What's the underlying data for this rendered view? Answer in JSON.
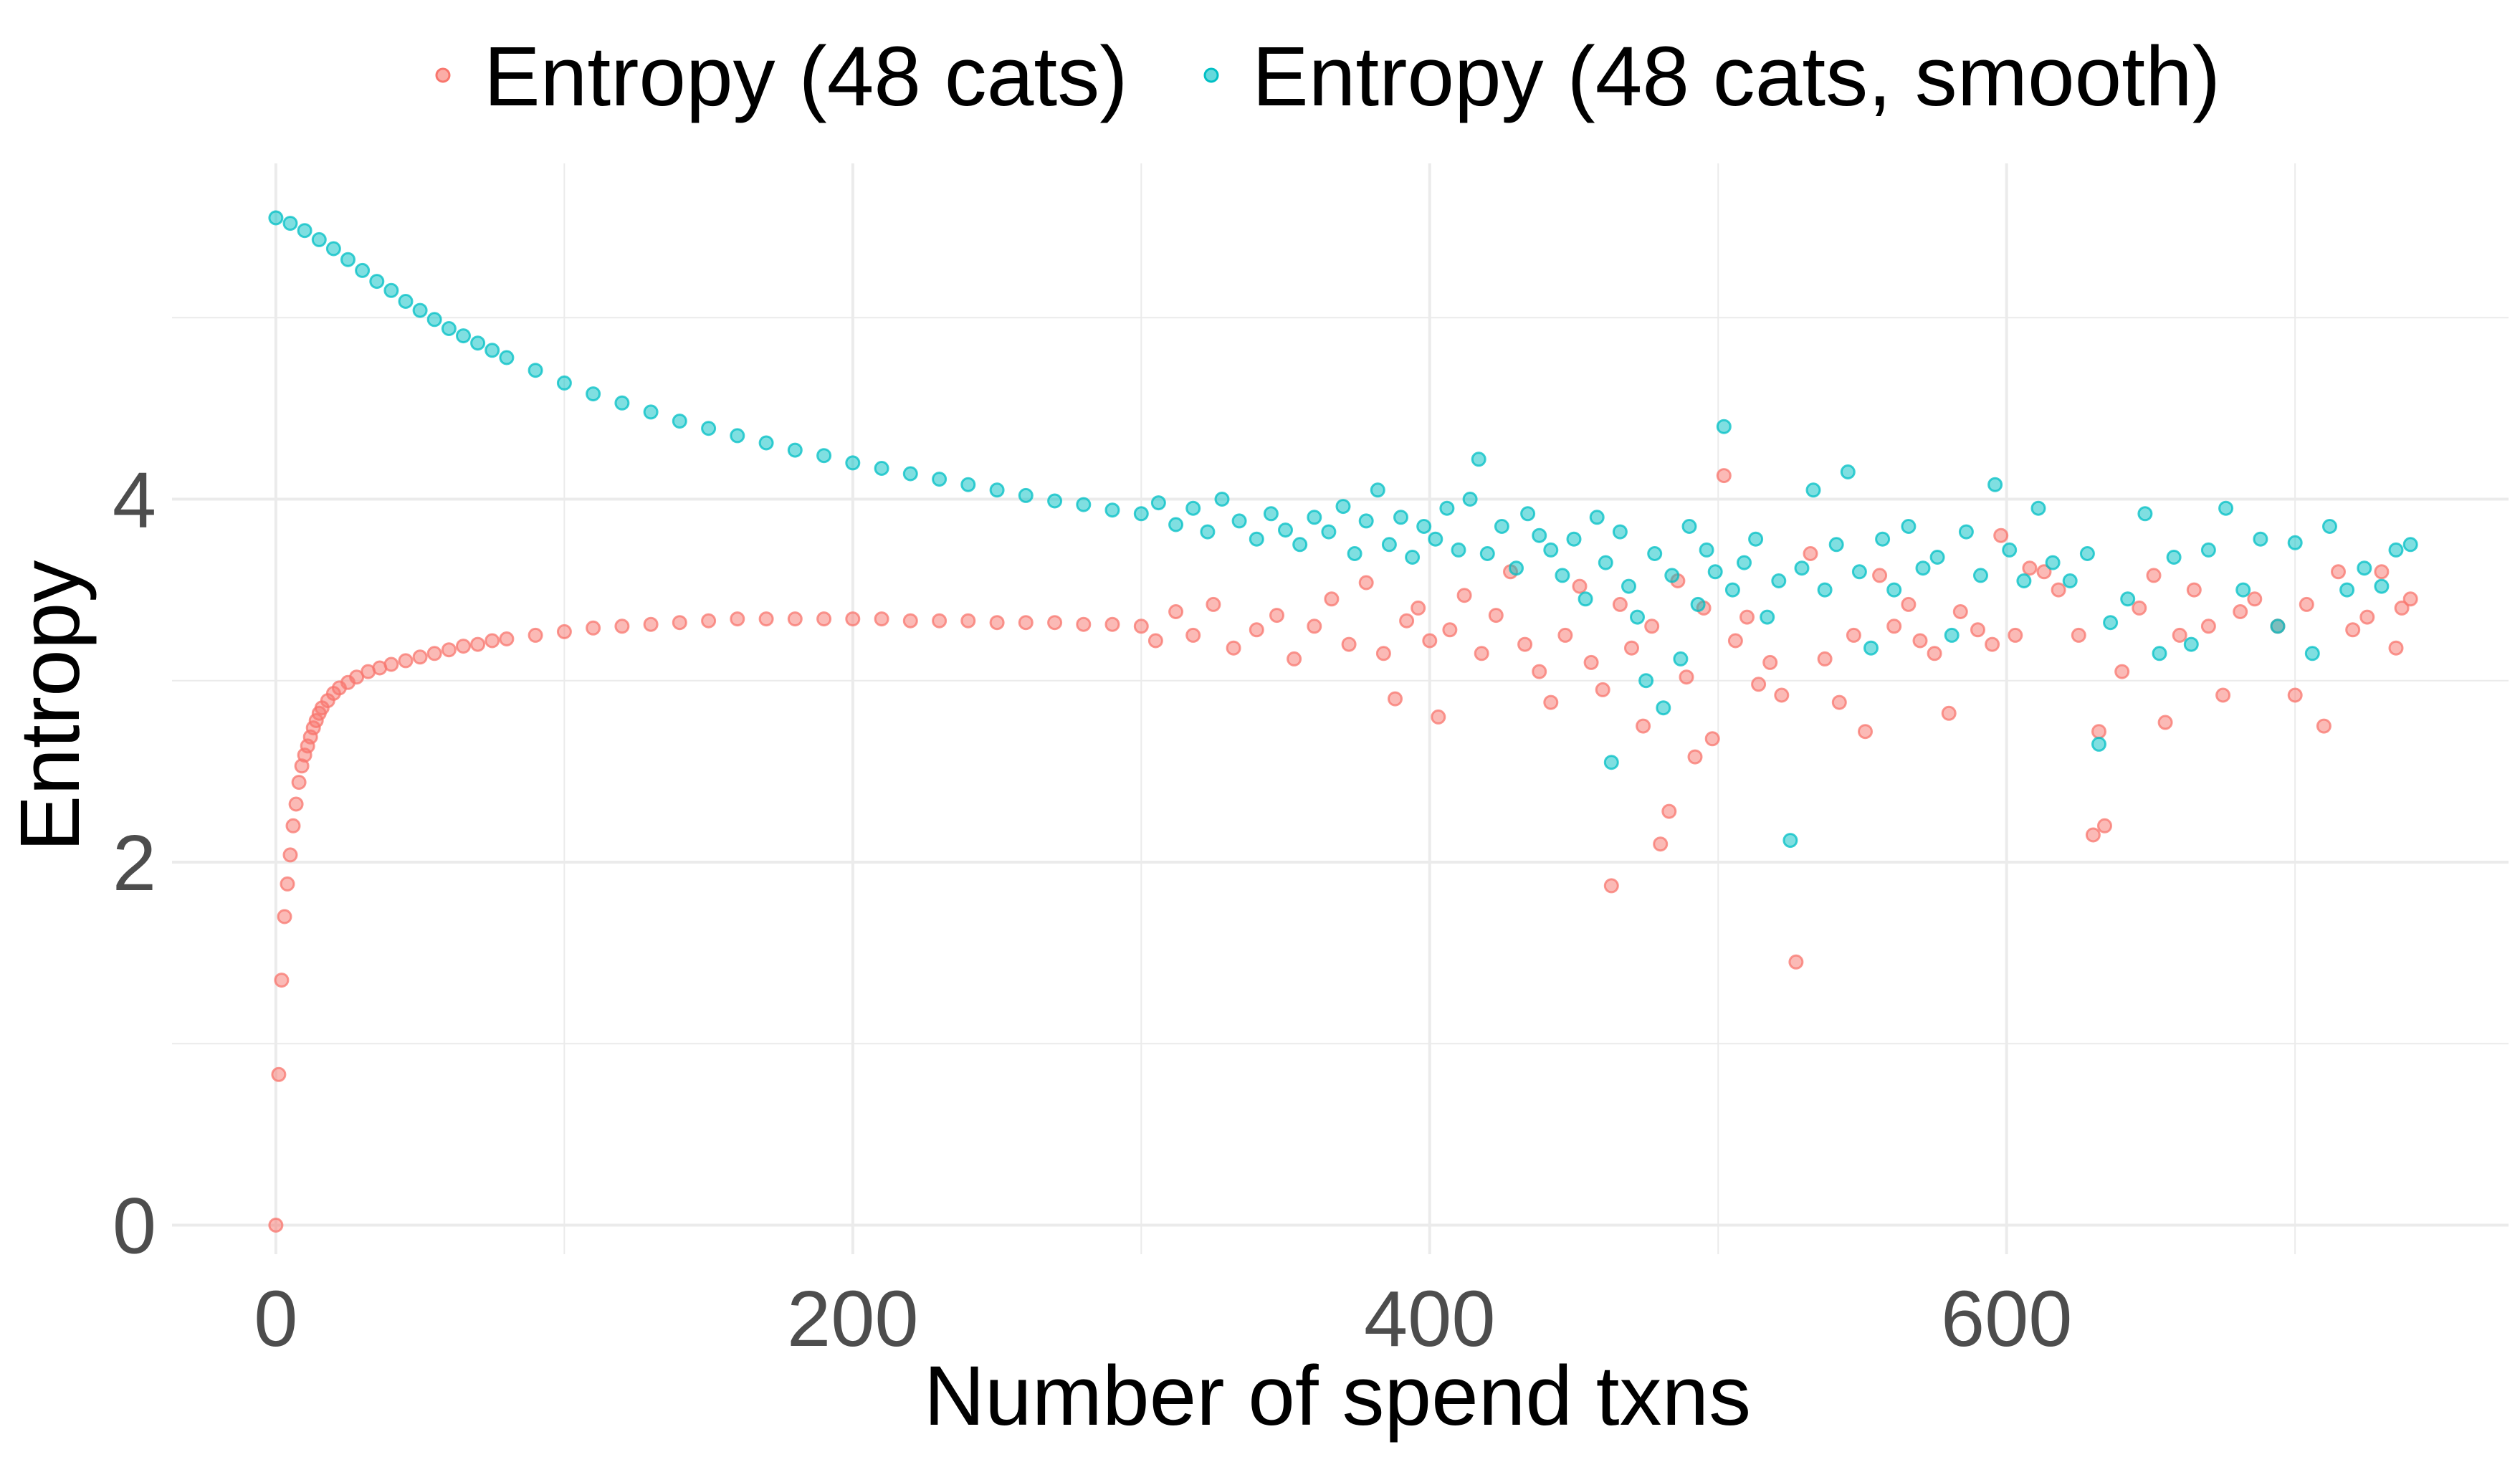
{
  "chart_data": {
    "type": "scatter",
    "xlabel": "Number of spend txns",
    "ylabel": "Entropy",
    "xlim": [
      -36,
      774
    ],
    "ylim": [
      -0.16,
      5.85
    ],
    "x_major_ticks": [
      0,
      200,
      400,
      600
    ],
    "x_minor_ticks": [
      100,
      300,
      500,
      700
    ],
    "y_major_ticks": [
      0,
      2,
      4
    ],
    "y_minor_ticks": [
      1,
      3,
      5
    ],
    "grid": true,
    "legend_position": "top",
    "colors": {
      "raw": "#F8766D",
      "smooth": "#00BFC4",
      "grid": "#ebebeb",
      "tick_text": "#4d4d4d"
    },
    "series": [
      {
        "name": "Entropy (48 cats)",
        "key": "raw",
        "color": "#F8766D",
        "points": [
          [
            0,
            0.0
          ],
          [
            1,
            0.83
          ],
          [
            2,
            1.35
          ],
          [
            3,
            1.7
          ],
          [
            4,
            1.88
          ],
          [
            5,
            2.04
          ],
          [
            6,
            2.2
          ],
          [
            7,
            2.32
          ],
          [
            8,
            2.44
          ],
          [
            9,
            2.53
          ],
          [
            10,
            2.59
          ],
          [
            11,
            2.64
          ],
          [
            12,
            2.69
          ],
          [
            13,
            2.74
          ],
          [
            14,
            2.78
          ],
          [
            15,
            2.82
          ],
          [
            16,
            2.85
          ],
          [
            18,
            2.89
          ],
          [
            20,
            2.93
          ],
          [
            22,
            2.96
          ],
          [
            25,
            2.99
          ],
          [
            28,
            3.02
          ],
          [
            32,
            3.05
          ],
          [
            36,
            3.07
          ],
          [
            40,
            3.09
          ],
          [
            45,
            3.11
          ],
          [
            50,
            3.13
          ],
          [
            55,
            3.15
          ],
          [
            60,
            3.17
          ],
          [
            65,
            3.19
          ],
          [
            70,
            3.2
          ],
          [
            75,
            3.22
          ],
          [
            80,
            3.23
          ],
          [
            90,
            3.25
          ],
          [
            100,
            3.27
          ],
          [
            110,
            3.29
          ],
          [
            120,
            3.3
          ],
          [
            130,
            3.31
          ],
          [
            140,
            3.32
          ],
          [
            150,
            3.33
          ],
          [
            160,
            3.34
          ],
          [
            170,
            3.34
          ],
          [
            180,
            3.34
          ],
          [
            190,
            3.34
          ],
          [
            200,
            3.34
          ],
          [
            210,
            3.34
          ],
          [
            220,
            3.33
          ],
          [
            230,
            3.33
          ],
          [
            240,
            3.33
          ],
          [
            250,
            3.32
          ],
          [
            260,
            3.32
          ],
          [
            270,
            3.32
          ],
          [
            280,
            3.31
          ],
          [
            290,
            3.31
          ],
          [
            300,
            3.3
          ],
          [
            305,
            3.22
          ],
          [
            312,
            3.38
          ],
          [
            318,
            3.25
          ],
          [
            325,
            3.42
          ],
          [
            332,
            3.18
          ],
          [
            340,
            3.28
          ],
          [
            347,
            3.36
          ],
          [
            353,
            3.12
          ],
          [
            360,
            3.3
          ],
          [
            366,
            3.45
          ],
          [
            372,
            3.2
          ],
          [
            378,
            3.54
          ],
          [
            384,
            3.15
          ],
          [
            388,
            2.9
          ],
          [
            392,
            3.33
          ],
          [
            396,
            3.4
          ],
          [
            400,
            3.22
          ],
          [
            403,
            2.8
          ],
          [
            407,
            3.28
          ],
          [
            412,
            3.47
          ],
          [
            418,
            3.15
          ],
          [
            423,
            3.36
          ],
          [
            428,
            3.6
          ],
          [
            433,
            3.2
          ],
          [
            438,
            3.05
          ],
          [
            442,
            2.88
          ],
          [
            447,
            3.25
          ],
          [
            452,
            3.52
          ],
          [
            456,
            3.1
          ],
          [
            460,
            2.95
          ],
          [
            463,
            1.87
          ],
          [
            466,
            3.42
          ],
          [
            470,
            3.18
          ],
          [
            474,
            2.75
          ],
          [
            477,
            3.3
          ],
          [
            480,
            2.1
          ],
          [
            483,
            2.28
          ],
          [
            486,
            3.55
          ],
          [
            489,
            3.02
          ],
          [
            492,
            2.58
          ],
          [
            495,
            3.4
          ],
          [
            498,
            2.68
          ],
          [
            502,
            4.13
          ],
          [
            506,
            3.22
          ],
          [
            510,
            3.35
          ],
          [
            514,
            2.98
          ],
          [
            518,
            3.1
          ],
          [
            522,
            2.92
          ],
          [
            527,
            1.45
          ],
          [
            532,
            3.7
          ],
          [
            537,
            3.12
          ],
          [
            542,
            2.88
          ],
          [
            547,
            3.25
          ],
          [
            551,
            2.72
          ],
          [
            556,
            3.58
          ],
          [
            561,
            3.3
          ],
          [
            566,
            3.42
          ],
          [
            570,
            3.22
          ],
          [
            575,
            3.15
          ],
          [
            580,
            2.82
          ],
          [
            584,
            3.38
          ],
          [
            590,
            3.28
          ],
          [
            595,
            3.2
          ],
          [
            598,
            3.8
          ],
          [
            603,
            3.25
          ],
          [
            608,
            3.62
          ],
          [
            613,
            3.6
          ],
          [
            618,
            3.5
          ],
          [
            625,
            3.25
          ],
          [
            630,
            2.15
          ],
          [
            632,
            2.72
          ],
          [
            634,
            2.2
          ],
          [
            640,
            3.05
          ],
          [
            646,
            3.4
          ],
          [
            651,
            3.58
          ],
          [
            655,
            2.77
          ],
          [
            660,
            3.25
          ],
          [
            665,
            3.5
          ],
          [
            670,
            3.3
          ],
          [
            675,
            2.92
          ],
          [
            681,
            3.38
          ],
          [
            686,
            3.45
          ],
          [
            694,
            3.3
          ],
          [
            700,
            2.92
          ],
          [
            704,
            3.42
          ],
          [
            710,
            2.75
          ],
          [
            715,
            3.6
          ],
          [
            720,
            3.28
          ],
          [
            725,
            3.35
          ],
          [
            730,
            3.6
          ],
          [
            735,
            3.18
          ],
          [
            737,
            3.4
          ],
          [
            740,
            3.45
          ]
        ]
      },
      {
        "name": "Entropy (48 cats, smooth)",
        "key": "smooth",
        "color": "#00BFC4",
        "points": [
          [
            0,
            5.55
          ],
          [
            5,
            5.52
          ],
          [
            10,
            5.48
          ],
          [
            15,
            5.43
          ],
          [
            20,
            5.38
          ],
          [
            25,
            5.32
          ],
          [
            30,
            5.26
          ],
          [
            35,
            5.2
          ],
          [
            40,
            5.15
          ],
          [
            45,
            5.09
          ],
          [
            50,
            5.04
          ],
          [
            55,
            4.99
          ],
          [
            60,
            4.94
          ],
          [
            65,
            4.9
          ],
          [
            70,
            4.86
          ],
          [
            75,
            4.82
          ],
          [
            80,
            4.78
          ],
          [
            90,
            4.71
          ],
          [
            100,
            4.64
          ],
          [
            110,
            4.58
          ],
          [
            120,
            4.53
          ],
          [
            130,
            4.48
          ],
          [
            140,
            4.43
          ],
          [
            150,
            4.39
          ],
          [
            160,
            4.35
          ],
          [
            170,
            4.31
          ],
          [
            180,
            4.27
          ],
          [
            190,
            4.24
          ],
          [
            200,
            4.2
          ],
          [
            210,
            4.17
          ],
          [
            220,
            4.14
          ],
          [
            230,
            4.11
          ],
          [
            240,
            4.08
          ],
          [
            250,
            4.05
          ],
          [
            260,
            4.02
          ],
          [
            270,
            3.99
          ],
          [
            280,
            3.97
          ],
          [
            290,
            3.94
          ],
          [
            300,
            3.92
          ],
          [
            306,
            3.98
          ],
          [
            312,
            3.86
          ],
          [
            318,
            3.95
          ],
          [
            323,
            3.82
          ],
          [
            328,
            4.0
          ],
          [
            334,
            3.88
          ],
          [
            340,
            3.78
          ],
          [
            345,
            3.92
          ],
          [
            350,
            3.83
          ],
          [
            355,
            3.75
          ],
          [
            360,
            3.9
          ],
          [
            365,
            3.82
          ],
          [
            370,
            3.96
          ],
          [
            374,
            3.7
          ],
          [
            378,
            3.88
          ],
          [
            382,
            4.05
          ],
          [
            386,
            3.75
          ],
          [
            390,
            3.9
          ],
          [
            394,
            3.68
          ],
          [
            398,
            3.85
          ],
          [
            402,
            3.78
          ],
          [
            406,
            3.95
          ],
          [
            410,
            3.72
          ],
          [
            414,
            4.0
          ],
          [
            417,
            4.22
          ],
          [
            420,
            3.7
          ],
          [
            425,
            3.85
          ],
          [
            430,
            3.62
          ],
          [
            434,
            3.92
          ],
          [
            438,
            3.8
          ],
          [
            442,
            3.72
          ],
          [
            446,
            3.58
          ],
          [
            450,
            3.78
          ],
          [
            454,
            3.45
          ],
          [
            458,
            3.9
          ],
          [
            461,
            3.65
          ],
          [
            463,
            2.55
          ],
          [
            466,
            3.82
          ],
          [
            469,
            3.52
          ],
          [
            472,
            3.35
          ],
          [
            475,
            3.0
          ],
          [
            478,
            3.7
          ],
          [
            481,
            2.85
          ],
          [
            484,
            3.58
          ],
          [
            487,
            3.12
          ],
          [
            490,
            3.85
          ],
          [
            493,
            3.42
          ],
          [
            496,
            3.72
          ],
          [
            499,
            3.6
          ],
          [
            502,
            4.4
          ],
          [
            505,
            3.5
          ],
          [
            509,
            3.65
          ],
          [
            513,
            3.78
          ],
          [
            517,
            3.35
          ],
          [
            521,
            3.55
          ],
          [
            525,
            2.12
          ],
          [
            529,
            3.62
          ],
          [
            533,
            4.05
          ],
          [
            537,
            3.5
          ],
          [
            541,
            3.75
          ],
          [
            545,
            4.15
          ],
          [
            549,
            3.6
          ],
          [
            553,
            3.18
          ],
          [
            557,
            3.78
          ],
          [
            561,
            3.5
          ],
          [
            566,
            3.85
          ],
          [
            571,
            3.62
          ],
          [
            576,
            3.68
          ],
          [
            581,
            3.25
          ],
          [
            586,
            3.82
          ],
          [
            591,
            3.58
          ],
          [
            596,
            4.08
          ],
          [
            601,
            3.72
          ],
          [
            606,
            3.55
          ],
          [
            611,
            3.95
          ],
          [
            616,
            3.65
          ],
          [
            622,
            3.55
          ],
          [
            628,
            3.7
          ],
          [
            632,
            2.65
          ],
          [
            636,
            3.32
          ],
          [
            642,
            3.45
          ],
          [
            648,
            3.92
          ],
          [
            653,
            3.15
          ],
          [
            658,
            3.68
          ],
          [
            664,
            3.2
          ],
          [
            670,
            3.72
          ],
          [
            676,
            3.95
          ],
          [
            682,
            3.5
          ],
          [
            688,
            3.78
          ],
          [
            694,
            3.3
          ],
          [
            700,
            3.76
          ],
          [
            706,
            3.15
          ],
          [
            712,
            3.85
          ],
          [
            718,
            3.5
          ],
          [
            724,
            3.62
          ],
          [
            730,
            3.52
          ],
          [
            735,
            3.72
          ],
          [
            740,
            3.75
          ]
        ]
      }
    ]
  }
}
